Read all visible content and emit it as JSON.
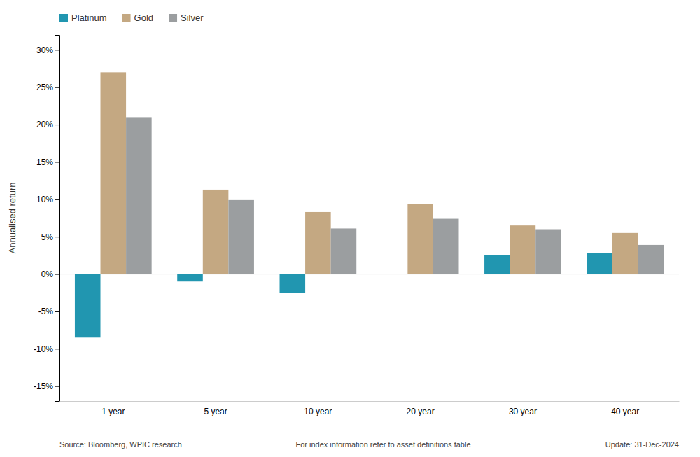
{
  "chart_data": {
    "type": "bar",
    "categories": [
      "1 year",
      "5 year",
      "10 year",
      "20 year",
      "30 year",
      "40 year"
    ],
    "series": [
      {
        "name": "Platinum",
        "color": "#2196b0",
        "values": [
          -8.5,
          -1.0,
          -2.5,
          0.0,
          2.5,
          2.8
        ]
      },
      {
        "name": "Gold",
        "color": "#c4a882",
        "values": [
          27.0,
          11.3,
          8.3,
          9.4,
          6.5,
          5.5
        ]
      },
      {
        "name": "Silver",
        "color": "#9b9ea0",
        "values": [
          21.0,
          9.9,
          6.1,
          7.4,
          6.0,
          3.9
        ]
      }
    ],
    "ylabel": "Annualised return",
    "ylim": [
      -17,
      32
    ],
    "yticks": [
      {
        "value": -15,
        "label": "-15%"
      },
      {
        "value": -10,
        "label": "-10%"
      },
      {
        "value": -5,
        "label": "-5%"
      },
      {
        "value": 0,
        "label": "0%"
      },
      {
        "value": 5,
        "label": "5%"
      },
      {
        "value": 10,
        "label": "10%"
      },
      {
        "value": 15,
        "label": "15%"
      },
      {
        "value": 20,
        "label": "20%"
      },
      {
        "value": 25,
        "label": "25%"
      },
      {
        "value": 30,
        "label": "30%"
      }
    ],
    "annotations": [
      "Source: Bloomberg, WPIC research",
      "For index information refer to asset definitions table",
      "Update: 31-Dec-2024"
    ],
    "legend": "top-left",
    "grid": false
  }
}
